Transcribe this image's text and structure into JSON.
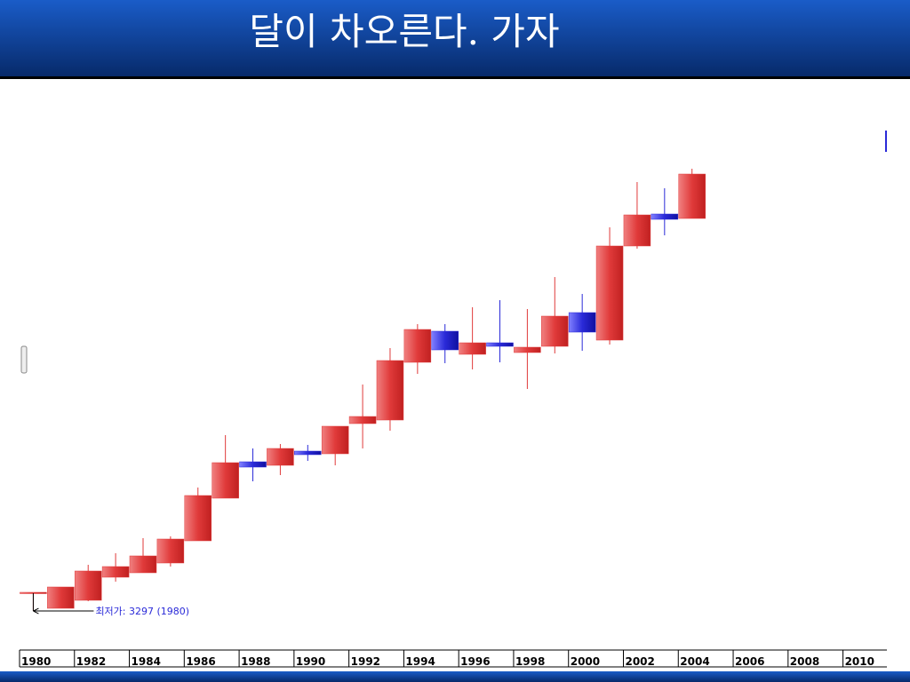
{
  "chart_data": {
    "type": "candlestick",
    "title": "달이 차오른다. 가자",
    "annotation": "최저가: 3297 (1980)",
    "x": [
      1980,
      1981,
      1982,
      1983,
      1984,
      1985,
      1986,
      1987,
      1988,
      1989,
      1990,
      1991,
      1992,
      1993,
      1994,
      1995,
      1996,
      1997,
      1998,
      1999,
      2000,
      2001,
      2002,
      2003,
      2004
    ],
    "open": [
      5300,
      3600,
      4500,
      7100,
      7600,
      8700,
      11200,
      16000,
      20100,
      19700,
      21300,
      21000,
      24400,
      24800,
      31300,
      34800,
      32200,
      33500,
      32400,
      33100,
      36900,
      33800,
      44400,
      48000,
      47500
    ],
    "high": [
      5400,
      6000,
      8500,
      9800,
      11500,
      11700,
      17200,
      23100,
      21600,
      22100,
      22000,
      24100,
      28800,
      32900,
      35600,
      35600,
      37500,
      38300,
      37300,
      40900,
      39000,
      46500,
      51600,
      50900,
      53100
    ],
    "low": [
      3297,
      3600,
      4400,
      6600,
      7600,
      8300,
      11200,
      16000,
      17900,
      18600,
      20200,
      19700,
      21600,
      23600,
      30000,
      31200,
      30500,
      31300,
      28300,
      32300,
      32600,
      33300,
      44100,
      45600,
      47500
    ],
    "close": [
      5400,
      6000,
      7800,
      8300,
      9500,
      11400,
      16300,
      20000,
      19500,
      21600,
      20900,
      24100,
      25200,
      31500,
      35000,
      32700,
      33500,
      33100,
      33000,
      36500,
      34700,
      44400,
      47900,
      47400,
      52500
    ],
    "up_color": "#e03a3a",
    "down_color": "#2a2ad8",
    "xlim": [
      1980,
      2011.6
    ],
    "xticks": [
      1980,
      1982,
      1984,
      1986,
      1988,
      1990,
      1992,
      1994,
      1996,
      1998,
      2000,
      2002,
      2004,
      2006,
      2008,
      2010
    ],
    "ylim": [
      0,
      60000
    ]
  }
}
